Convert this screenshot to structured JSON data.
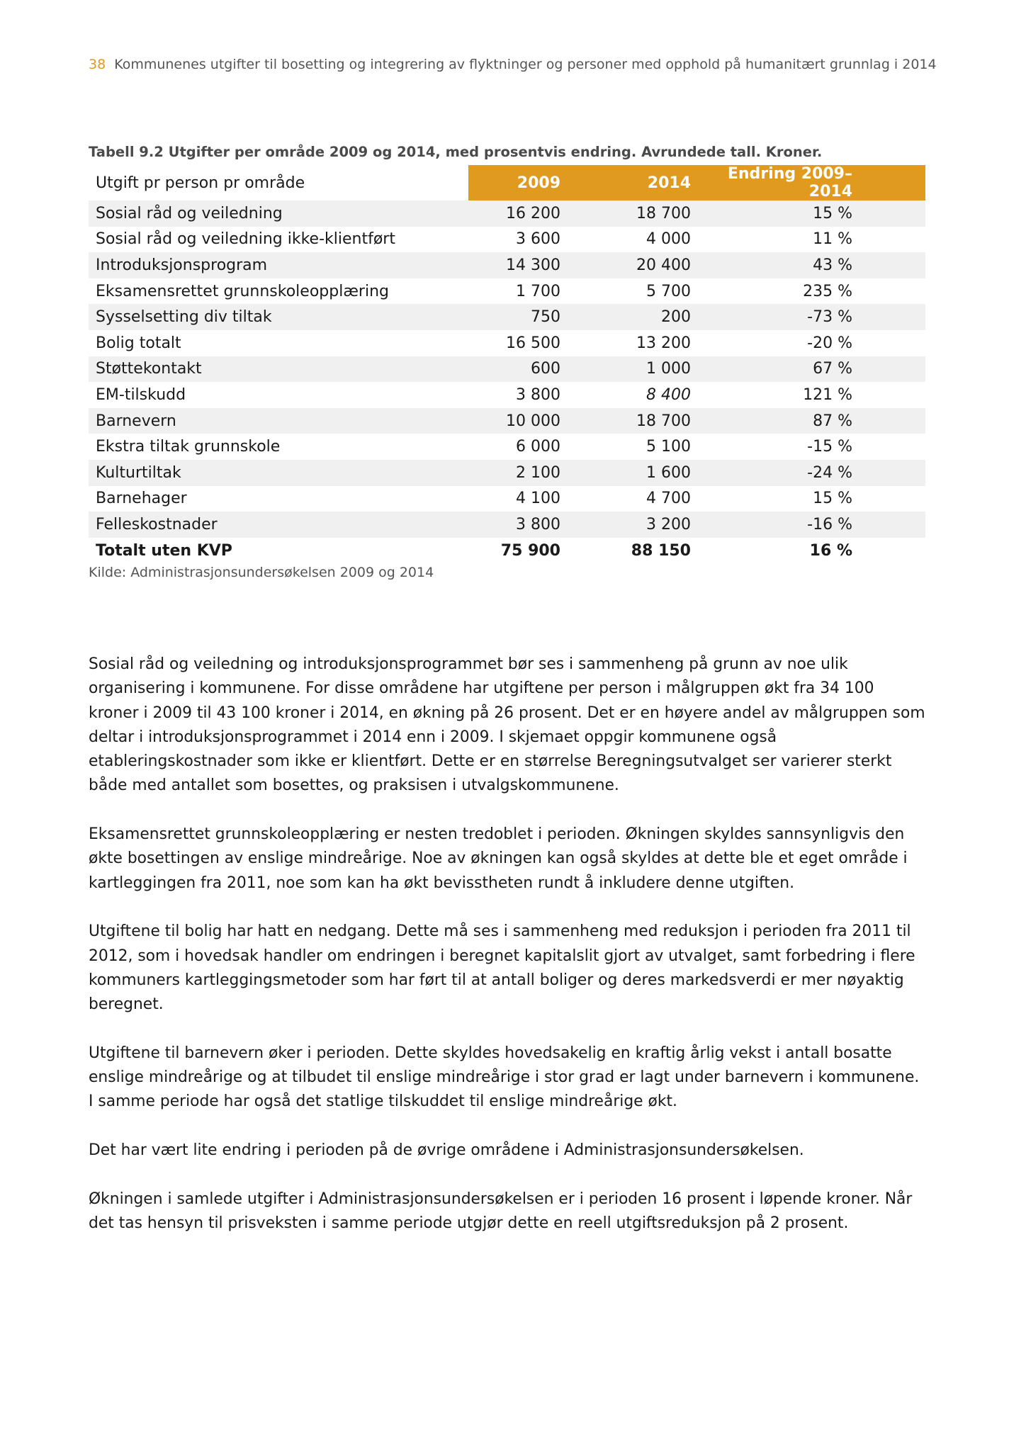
{
  "header": {
    "page_number": "38",
    "title": "Kommunenes utgifter til bosetting og integrering av flyktninger og personer med opphold på humanitært grunnlag i 2014"
  },
  "table": {
    "caption": "Tabell 9.2 Utgifter per område 2009 og 2014, med prosentvis endring. Avrundede tall. Kroner.",
    "columns": [
      "Utgift pr person pr område",
      "2009",
      "2014",
      "Endring 2009–2014"
    ],
    "rows": [
      [
        "Sosial råd og veiledning",
        "16 200",
        "18 700",
        "15 %"
      ],
      [
        "Sosial råd og veiledning ikke-klientført",
        "3 600",
        "4 000",
        "11 %"
      ],
      [
        "Introduksjonsprogram",
        "14 300",
        "20 400",
        "43 %"
      ],
      [
        "Eksamensrettet grunnskoleopplæring",
        "1 700",
        "5 700",
        "235 %"
      ],
      [
        "Sysselsetting div tiltak",
        "750",
        "200",
        "-73 %"
      ],
      [
        "Bolig totalt",
        "16 500",
        "13 200",
        "-20 %"
      ],
      [
        "Støttekontakt",
        "600",
        "1 000",
        "67 %"
      ],
      [
        "EM-tilskudd",
        "3 800",
        "8 400",
        "121 %"
      ],
      [
        "Barnevern",
        "10 000",
        "18 700",
        "87 %"
      ],
      [
        "Ekstra tiltak grunnskole",
        "6 000",
        "5 100",
        "-15 %"
      ],
      [
        "Kulturtiltak",
        "2 100",
        "1 600",
        "-24 %"
      ],
      [
        "Barnehager",
        "4 100",
        "4 700",
        "15 %"
      ],
      [
        "Felleskostnader",
        "3 800",
        "3 200",
        "-16 %"
      ]
    ],
    "total": [
      "Totalt uten KVP",
      "75 900",
      "88 150",
      "16 %"
    ],
    "source": "Kilde: Administrasjonsundersøkelsen 2009 og 2014",
    "accent_color": "#e09a1f"
  },
  "paragraphs": [
    "Sosial råd og veiledning og introduksjonsprogrammet bør ses i sammenheng på grunn av noe ulik organisering i kommunene. For disse områdene har utgiftene per person i målgruppen økt fra 34 100 kroner i 2009 til 43 100 kroner i 2014, en økning på 26 prosent. Det er en høyere andel av målgruppen som deltar i introduksjonsprogrammet i 2014 enn i 2009. I skjemaet oppgir kommunene også etableringskostnader som ikke er klientført. Dette er en større­lse Beregningsutvalget ser varierer sterkt både med antallet som bosettes, og praksisen i utvalgskommunene.",
    "Eksamensrettet grunnskoleopplæring er nesten tredoblet i perioden. Økningen skyldes sannsynligvis den økte bosettingen av enslige mindreårige. Noe av økningen kan også skyldes at dette ble et eget område i kartleggingen fra 2011, noe som kan ha økt bevisstheten rundt å inkludere denne utgiften.",
    "Utgiftene til bolig har hatt en nedgang. Dette må ses i sammenheng med reduksjon i perioden fra 2011 til 2012, som i hovedsak handler om endringen i beregnet kapitalslit gjort av utvalget, samt forbedring i flere kommuners kartleggingsmetoder som har ført til at antall boliger og deres markedsverdi er mer nøyaktig beregnet.",
    "Utgiftene til barnevern øker i perioden. Dette skyldes hovedsakelig en kraftig årlig vekst i antall bosatte enslige mindreårige og at tilbudet til enslige mindreårige i stor grad er lagt under barnevern i kommunene. I samme periode har også det statlige tilskuddet til enslige mindreårige økt.",
    "Det har vært lite endring i perioden på de øvrige områdene i Administrasjonsundersøkelsen.",
    "Økningen i samlede utgifter i Administrasjonsundersøkelsen er i perioden 16 prosent i løpende kroner. Når det tas hensyn til prisveksten i samme periode utgjør dette en reell utgiftsreduksjon på 2 prosent."
  ]
}
